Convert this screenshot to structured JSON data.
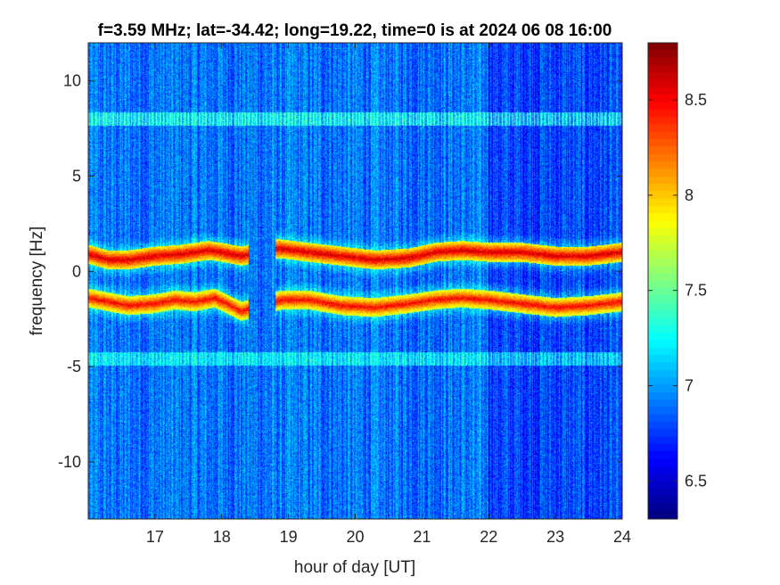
{
  "chart_data": {
    "type": "heatmap",
    "title": "f=3.59 MHz;  lat=-34.42; long=19.22, time=0 is at 2024 06 08 16:00",
    "xlabel": "hour of day [UT]",
    "ylabel": "frequency [Hz]",
    "xlim": [
      16,
      24
    ],
    "ylim": [
      -13,
      12
    ],
    "xticks": [
      17,
      18,
      19,
      20,
      21,
      22,
      23,
      24
    ],
    "xtick_labels": [
      "17",
      "18",
      "19",
      "20",
      "21",
      "22",
      "23",
      "24"
    ],
    "yticks": [
      10,
      5,
      0,
      -5,
      -10
    ],
    "ytick_labels": [
      "10",
      "5",
      "0",
      "-5",
      "-10"
    ],
    "colorbar": {
      "colormap": "jet",
      "clim": [
        6.3,
        8.8
      ],
      "ticks": [
        8.5,
        8,
        7.5,
        7,
        6.5
      ],
      "tick_labels": [
        "8.5",
        "8",
        "7.5",
        "7",
        "6.5"
      ]
    },
    "background_level": 6.9,
    "data_gap": [
      18.4,
      18.8
    ],
    "features": [
      {
        "description": "upper Doppler trace",
        "level": 8.6,
        "x": [
          16.0,
          16.3,
          16.6,
          17.0,
          17.4,
          17.8,
          18.0,
          18.3,
          18.85,
          19.3,
          19.8,
          20.3,
          20.8,
          21.2,
          21.6,
          22.0,
          22.5,
          23.0,
          23.5,
          24.0
        ],
        "y": [
          0.9,
          0.6,
          0.6,
          0.8,
          0.9,
          1.1,
          1.0,
          0.8,
          1.2,
          1.0,
          0.8,
          0.6,
          0.7,
          1.0,
          1.1,
          1.0,
          1.0,
          0.8,
          0.8,
          1.0
        ]
      },
      {
        "description": "lower Doppler trace",
        "level": 8.5,
        "x": [
          16.0,
          16.3,
          16.6,
          17.0,
          17.3,
          17.6,
          17.9,
          18.3,
          18.9,
          19.3,
          19.8,
          20.3,
          20.8,
          21.2,
          21.6,
          22.0,
          22.5,
          23.0,
          23.5,
          24.0
        ],
        "y": [
          -1.4,
          -1.6,
          -1.8,
          -1.7,
          -1.5,
          -1.6,
          -1.4,
          -2.1,
          -1.5,
          -1.5,
          -1.8,
          -1.9,
          -1.7,
          -1.5,
          -1.4,
          -1.5,
          -1.7,
          -1.9,
          -1.8,
          -1.6
        ]
      },
      {
        "description": "interference line",
        "y": 8.0,
        "level": 7.7
      },
      {
        "description": "interference line",
        "y": -4.6,
        "level": 7.4
      }
    ]
  }
}
